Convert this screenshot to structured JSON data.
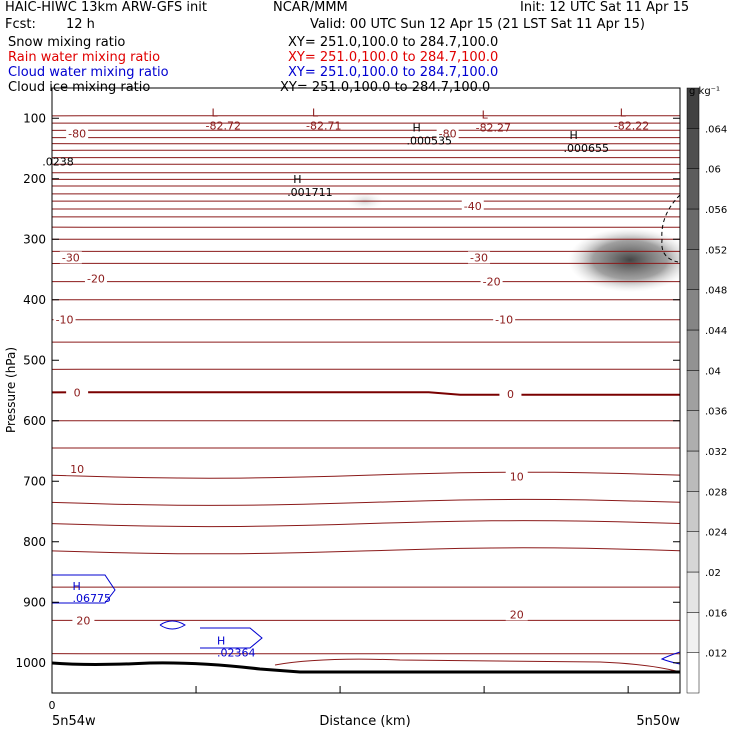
{
  "header": {
    "model": "HAIC-HIWC 13km ARW-GFS init",
    "org": "NCAR/MMM",
    "init": "Init: 12 UTC Sat 11 Apr 15",
    "fcst_label": "Fcst:",
    "fcst_value": "12 h",
    "valid": "Valid: 00 UTC Sun 12 Apr 15 (21 LST Sat 11 Apr 15)",
    "fields": [
      {
        "name": "Snow mixing ratio",
        "xy": "XY= 251.0,100.0 to 284.7,100.0",
        "color": "#000000"
      },
      {
        "name": "Rain water mixing ratio",
        "xy": "XY= 251.0,100.0 to 284.7,100.0",
        "color": "#e00000"
      },
      {
        "name": "Cloud water mixing ratio",
        "xy": "XY= 251.0,100.0 to 284.7,100.0",
        "color": "#0000d0"
      },
      {
        "name": "Cloud ice mixing ratio",
        "xy": "XY= 251.0,100.0 to 284.7,100.0",
        "color": "#000000"
      }
    ]
  },
  "chart_data": {
    "type": "contour-cross-section",
    "ylabel": "Pressure (hPa)",
    "xlabel": "Distance (km)",
    "x_start_tick": "0",
    "x_left_label": "5n54w",
    "x_right_label": "5n50w",
    "y_ticks": [
      100,
      200,
      300,
      400,
      500,
      600,
      700,
      800,
      900,
      1000
    ],
    "y_range": [
      50,
      1050
    ],
    "x_range": [
      0,
      1
    ],
    "colorbar": {
      "unit": "g kg⁻¹",
      "levels": [
        0.012,
        0.016,
        0.02,
        0.024,
        0.028,
        0.032,
        0.036,
        0.04,
        0.044,
        0.048,
        0.052,
        0.056,
        0.06,
        0.064
      ],
      "labels": [
        ".012",
        ".016",
        ".02",
        ".024",
        ".028",
        ".032",
        ".036",
        ".04",
        ".044",
        ".048",
        ".052",
        ".056",
        ".06",
        ".064"
      ]
    },
    "temperature_labels": [
      {
        "text": "-80",
        "x": 0.04,
        "p": 125
      },
      {
        "text": "-80",
        "x": 0.63,
        "p": 125
      },
      {
        "text": "-40",
        "x": 0.67,
        "p": 245
      },
      {
        "text": "-30",
        "x": 0.03,
        "p": 330
      },
      {
        "text": "-30",
        "x": 0.68,
        "p": 330
      },
      {
        "text": "-20",
        "x": 0.07,
        "p": 365
      },
      {
        "text": "-20",
        "x": 0.7,
        "p": 370
      },
      {
        "text": "-10",
        "x": 0.02,
        "p": 433
      },
      {
        "text": "-10",
        "x": 0.72,
        "p": 433
      },
      {
        "text": "0",
        "x": 0.04,
        "p": 553
      },
      {
        "text": "0",
        "x": 0.73,
        "p": 556
      },
      {
        "text": "10",
        "x": 0.04,
        "p": 680
      },
      {
        "text": "10",
        "x": 0.74,
        "p": 692
      },
      {
        "text": "20",
        "x": 0.05,
        "p": 930
      },
      {
        "text": "20",
        "x": 0.74,
        "p": 920
      }
    ],
    "extrema": [
      {
        "mark": "L",
        "value": "-82.72",
        "x": 0.27,
        "p": 100
      },
      {
        "mark": "L",
        "value": "-82.71",
        "x": 0.43,
        "p": 100
      },
      {
        "mark": "L",
        "value": "-82.27",
        "x": 0.7,
        "p": 104
      },
      {
        "mark": "L",
        "value": "-82.22",
        "x": 0.92,
        "p": 100
      },
      {
        "mark": "H",
        "value": ".000535",
        "x": 0.59,
        "p": 125
      },
      {
        "mark": "H",
        "value": ".000655",
        "x": 0.84,
        "p": 138
      },
      {
        "mark": "H",
        "value": ".001711",
        "x": 0.4,
        "p": 210
      },
      {
        "mark": "",
        "value": ".0238",
        "x": 0.01,
        "p": 160
      }
    ],
    "cloud_water_labels": [
      {
        "mark": "H",
        "value": ".06775",
        "x": 0.02,
        "p": 880
      },
      {
        "mark": "H",
        "value": ".02364",
        "x": 0.25,
        "p": 970
      }
    ]
  }
}
